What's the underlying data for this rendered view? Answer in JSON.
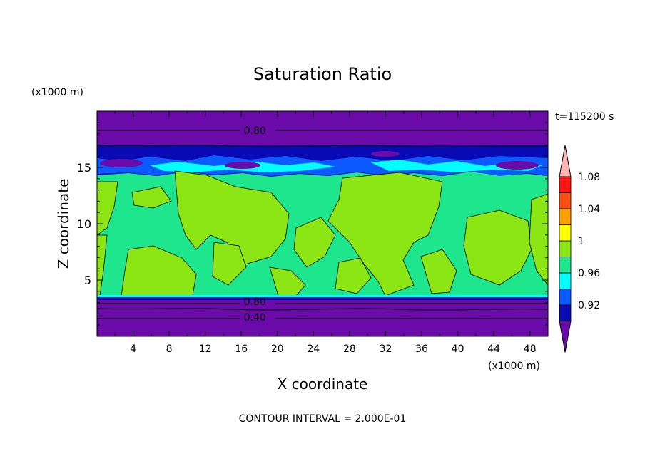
{
  "chart_data": {
    "type": "heatmap",
    "title": "Saturation Ratio",
    "xlabel": "X coordinate",
    "ylabel": "Z coordinate",
    "x_unit_label": "(x1000 m)",
    "y_unit_label": "(x1000 m)",
    "time_label": "t=115200 s",
    "footer": "CONTOUR INTERVAL = 2.000E-01",
    "xlim": [
      0,
      50
    ],
    "ylim": [
      0,
      20
    ],
    "xticks": [
      "4",
      "8",
      "12",
      "16",
      "20",
      "24",
      "28",
      "32",
      "36",
      "40",
      "44",
      "48"
    ],
    "xtick_values": [
      4,
      8,
      12,
      16,
      20,
      24,
      28,
      32,
      36,
      40,
      44,
      48
    ],
    "yticks": [
      "5",
      "10",
      "15"
    ],
    "ytick_values": [
      5,
      10,
      15
    ],
    "contour_labels": [
      {
        "text": "0.80",
        "x": 17.5,
        "y": 18.3
      },
      {
        "text": "0.80",
        "x": 17.5,
        "y": 3.1
      },
      {
        "text": "0.40",
        "x": 17.5,
        "y": 1.7
      }
    ],
    "colorbar": {
      "levels": [
        "0.92",
        "0.96",
        "1",
        "1.04",
        "1.08"
      ],
      "colors": [
        "#6a0aa8",
        "#0a0ab4",
        "#0a5aff",
        "#00ffff",
        "#1ee68c",
        "#8ce614",
        "#ffff00",
        "#ffa000",
        "#ff5014",
        "#ff1414",
        "#ffb4b4"
      ]
    },
    "colors": {
      "deep_purple": "#6a0aa8",
      "dark_blue": "#0a0ab4",
      "blue": "#0a5aff",
      "cyan": "#00ffff",
      "green": "#1ee68c",
      "lime": "#8ce614"
    }
  }
}
